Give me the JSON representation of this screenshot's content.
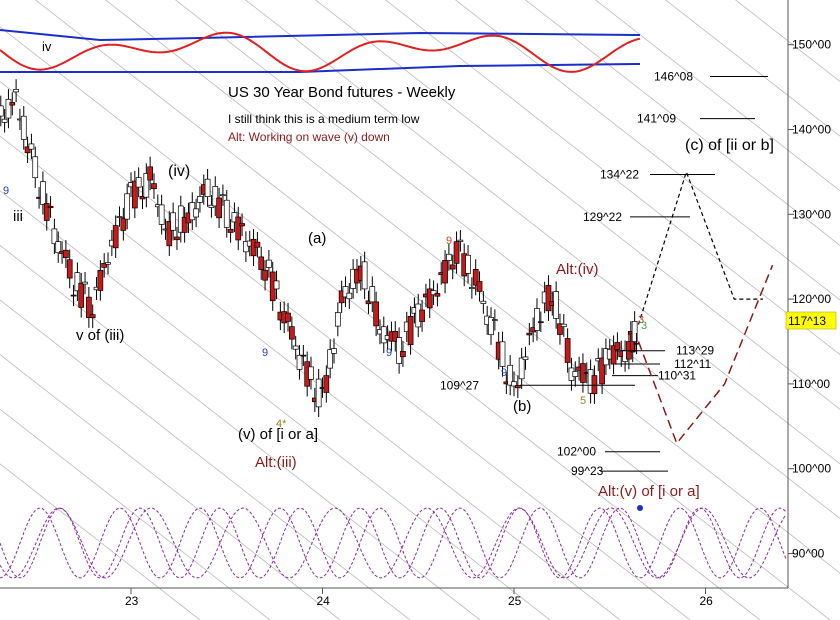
{
  "chart_data": {
    "type": "line",
    "title": "US 30 Year Bond futures - Weekly",
    "notes": [
      {
        "text": "I still think this is a medium term low",
        "color": "#000000"
      },
      {
        "text": "Alt: Working on wave (v) down",
        "color": "#8b1a1a"
      }
    ],
    "x_ticks": [
      "23",
      "24",
      "25",
      "26"
    ],
    "y_axis": {
      "ticks": [
        {
          "value": 90,
          "label": "90^00"
        },
        {
          "value": 100,
          "label": "100^00"
        },
        {
          "value": 110,
          "label": "110^00"
        },
        {
          "value": 120,
          "label": "120^00"
        },
        {
          "value": 130,
          "label": "130^00"
        },
        {
          "value": 140,
          "label": "140^00"
        },
        {
          "value": 150,
          "label": "150^00"
        }
      ],
      "range": [
        88,
        156
      ]
    },
    "current_price_label": "117^13",
    "price_series": {
      "name": "",
      "x": [
        22.0,
        22.1,
        22.2,
        22.3,
        22.4,
        22.5,
        22.6,
        22.7,
        22.8,
        22.9,
        23.0,
        23.1,
        23.2,
        23.3,
        23.4,
        23.5,
        23.6,
        23.7,
        23.8,
        23.9,
        24.0,
        24.1,
        24.2,
        24.3,
        24.4,
        24.5,
        24.6,
        24.7,
        24.8,
        24.9,
        25.0,
        25.1,
        25.2,
        25.3,
        25.4,
        25.5,
        25.6,
        25.65
      ],
      "y": [
        138,
        136,
        134,
        141,
        144,
        135,
        128,
        122,
        119,
        126,
        132,
        134,
        128,
        130,
        133,
        130,
        127,
        124,
        118,
        112,
        108,
        120,
        124,
        117,
        114,
        118,
        121,
        126,
        122,
        116,
        109,
        117,
        121,
        112,
        110,
        113,
        114,
        117
      ]
    },
    "price_levels": [
      {
        "label": "146^08",
        "value": 146.25
      },
      {
        "label": "141^09",
        "value": 141.28
      },
      {
        "label": "134^22",
        "value": 134.69
      },
      {
        "label": "129^22",
        "value": 129.69
      },
      {
        "label": "113^29",
        "value": 113.91
      },
      {
        "label": "112^11",
        "value": 112.34
      },
      {
        "label": "110^31",
        "value": 110.97
      },
      {
        "label": "109^27",
        "value": 109.84
      },
      {
        "label": "102^00",
        "value": 102.0
      },
      {
        "label": "99^23",
        "value": 99.72
      }
    ],
    "wave_labels": [
      {
        "text": "iv",
        "color": "#000000"
      },
      {
        "text": "iii",
        "color": "#000000"
      },
      {
        "text": "(iv)",
        "color": "#000000"
      },
      {
        "text": "v of (iii)",
        "color": "#000000"
      },
      {
        "text": "(a)",
        "color": "#000000"
      },
      {
        "text": "(v) of [i or a]",
        "color": "#000000"
      },
      {
        "text": "Alt:(iii)",
        "color": "#8b1a1a"
      },
      {
        "text": "(b)",
        "color": "#000000"
      },
      {
        "text": "Alt:(iv)",
        "color": "#8b1a1a"
      },
      {
        "text": "(c) of [ii or b]",
        "color": "#000000"
      },
      {
        "text": "Alt:(v) of [i or a]",
        "color": "#8b1a1a"
      }
    ],
    "count_labels": [
      {
        "text": "9",
        "color": "#1f3fbf"
      },
      {
        "text": "9",
        "color": "#1f3fbf"
      },
      {
        "text": "9",
        "color": "#1f3fbf"
      },
      {
        "text": "9",
        "color": "#1f3fbf"
      },
      {
        "text": "9",
        "color": "#d04020"
      },
      {
        "text": "4*",
        "color": "#a08020"
      },
      {
        "text": "5",
        "color": "#a08020"
      },
      {
        "text": "3",
        "color": "#d04020"
      },
      {
        "text": "3",
        "color": "#3aa53a"
      }
    ],
    "projection_bull": {
      "x": [
        25.65,
        25.9,
        26.15,
        26.3
      ],
      "y": [
        117,
        135,
        120,
        120
      ]
    },
    "projection_alt": {
      "x": [
        25.65,
        25.85,
        26.1,
        26.35
      ],
      "y": [
        115,
        103,
        110,
        124
      ]
    },
    "colors": {
      "background": "#ffffff",
      "bull_candle": "#ffffff",
      "bear_candle": "#c41a1a",
      "oscillator": "#e02020",
      "bands": "#1a2fc8",
      "cycles": "#8a2b9e",
      "channels": "#bbbbbb",
      "price_badge": "#ffff00",
      "alt_projection": "#8b1a1a"
    },
    "grid": false
  }
}
